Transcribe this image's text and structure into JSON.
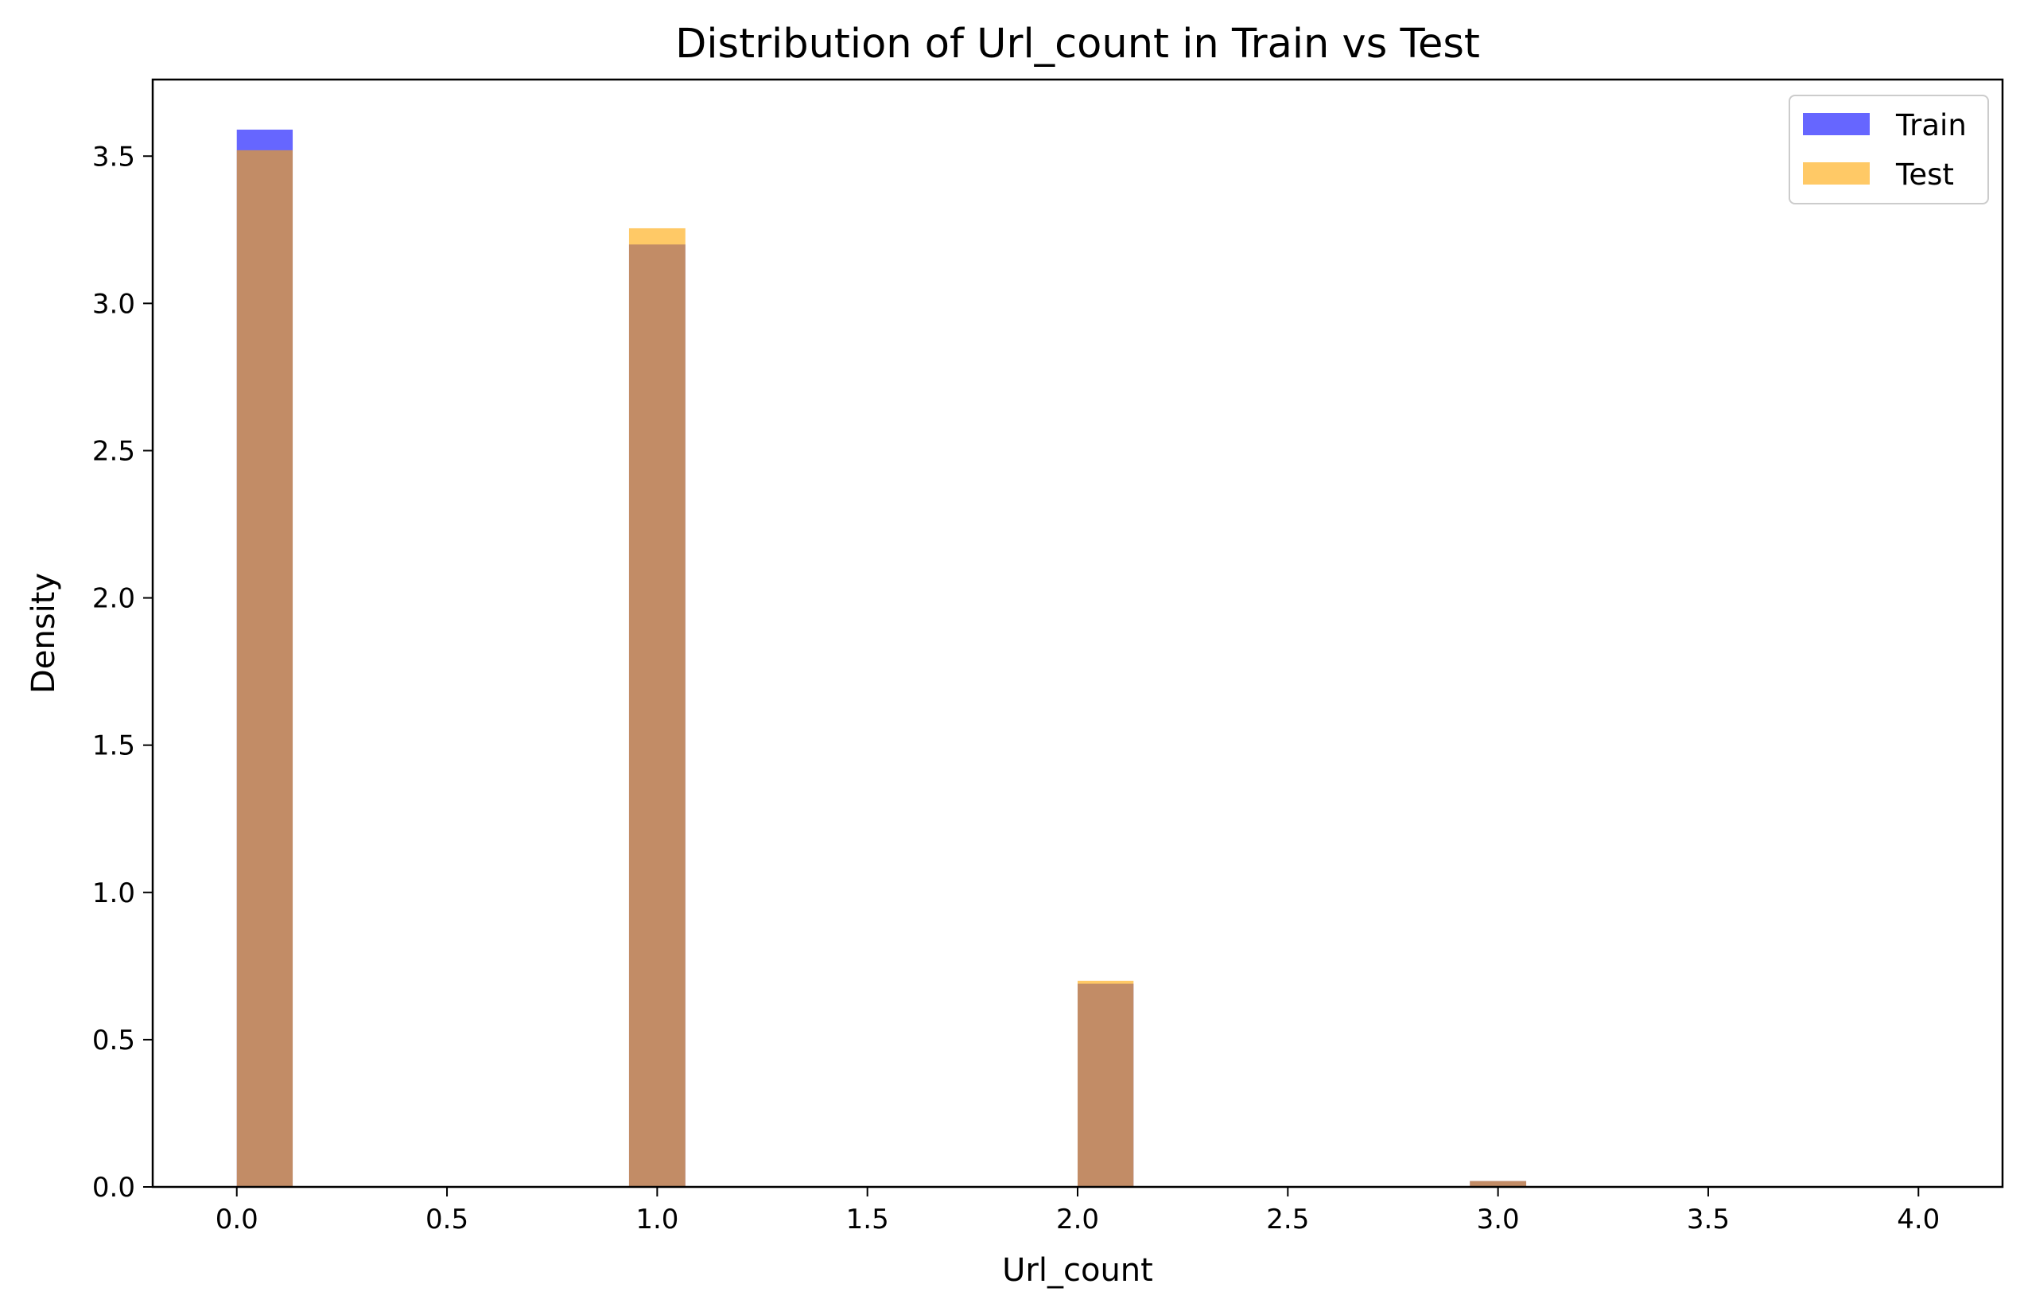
{
  "chart_data": {
    "type": "bar",
    "title": "Distribution of Url_count in Train vs Test",
    "xlabel": "Url_count",
    "ylabel": "Density",
    "xlim": [
      -0.2,
      4.2
    ],
    "ylim": [
      0,
      3.76
    ],
    "xticks": [
      0.0,
      0.5,
      1.0,
      1.5,
      2.0,
      2.5,
      3.0,
      3.5,
      4.0
    ],
    "xtick_labels": [
      "0.0",
      "0.5",
      "1.0",
      "1.5",
      "2.0",
      "2.5",
      "3.0",
      "3.5",
      "4.0"
    ],
    "yticks": [
      0.0,
      0.5,
      1.0,
      1.5,
      2.0,
      2.5,
      3.0,
      3.5
    ],
    "ytick_labels": [
      "0.0",
      "0.5",
      "1.0",
      "1.5",
      "2.0",
      "2.5",
      "3.0",
      "3.5"
    ],
    "grid": false,
    "legend_position": "top-right",
    "series": [
      {
        "name": "Train",
        "color": "#0000ff",
        "opacity": 0.6,
        "bins": [
          {
            "x0": 0.0,
            "x1": 0.133,
            "value": 3.59
          },
          {
            "x0": 0.933,
            "x1": 1.067,
            "value": 3.2
          },
          {
            "x0": 2.0,
            "x1": 2.133,
            "value": 0.69
          },
          {
            "x0": 2.933,
            "x1": 3.067,
            "value": 0.02
          }
        ]
      },
      {
        "name": "Test",
        "color": "#ffa500",
        "opacity": 0.6,
        "bins": [
          {
            "x0": 0.0,
            "x1": 0.133,
            "value": 3.52
          },
          {
            "x0": 0.933,
            "x1": 1.067,
            "value": 3.255
          },
          {
            "x0": 2.0,
            "x1": 2.133,
            "value": 0.7
          },
          {
            "x0": 2.933,
            "x1": 3.067,
            "value": 0.02
          }
        ]
      }
    ]
  }
}
